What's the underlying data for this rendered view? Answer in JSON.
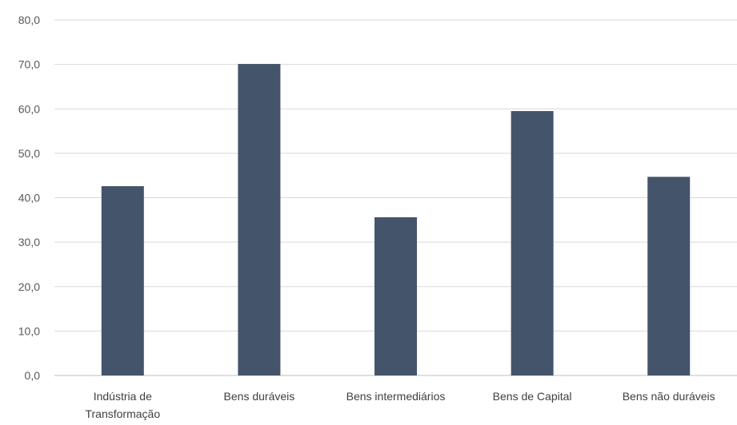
{
  "chart_data": {
    "type": "bar",
    "title": "",
    "xlabel": "",
    "ylabel": "",
    "ylim": [
      0,
      80
    ],
    "grid": true,
    "legend": "none",
    "bar_color": "#44546a",
    "grid_color": "#d9d9d9",
    "y_ticks": [
      "0,0",
      "10,0",
      "20,0",
      "30,0",
      "40,0",
      "50,0",
      "60,0",
      "70,0",
      "80,0"
    ],
    "categories": [
      [
        "Indústria de",
        "Transformação"
      ],
      [
        "Bens duráveis"
      ],
      [
        "Bens intermediários"
      ],
      [
        "Bens de Capital"
      ],
      [
        "Bens não duráveis"
      ]
    ],
    "values": [
      42.6,
      70.1,
      35.6,
      59.5,
      44.7
    ]
  }
}
